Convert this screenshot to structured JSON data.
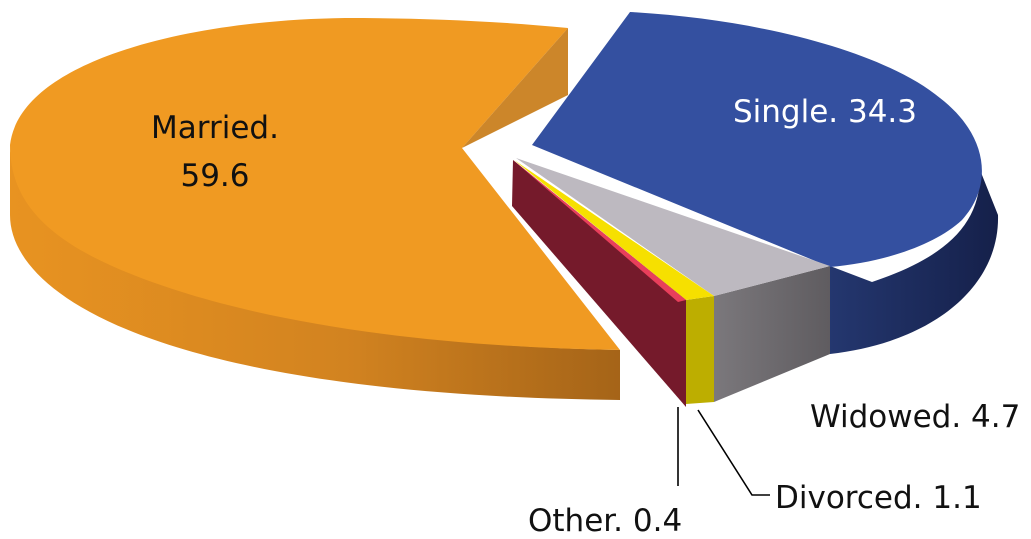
{
  "chart_data": {
    "type": "pie",
    "style": "3d-exploded",
    "title": "",
    "slices": [
      {
        "label": "Married",
        "value": 59.6,
        "display": "Married. 59.6",
        "color": "#F09A22",
        "side_color": "#C8781A"
      },
      {
        "label": "Single",
        "value": 34.3,
        "display": "Single. 34.3",
        "color": "#3450A0",
        "side_color": "#1B2B63"
      },
      {
        "label": "Widowed",
        "value": 4.7,
        "display": "Widowed. 4.7",
        "color": "#BDB9C0",
        "side_color": "#6E6B6E"
      },
      {
        "label": "Divorced",
        "value": 1.1,
        "display": "Divorced. 1.1",
        "color": "#F6E000",
        "side_color": "#BDAE00"
      },
      {
        "label": "Other",
        "value": 0.4,
        "display": "Other. 0.4",
        "color": "#E83F5B",
        "side_color": "#751A2B"
      }
    ],
    "label_lines": [
      "Married.",
      "59.6"
    ]
  }
}
